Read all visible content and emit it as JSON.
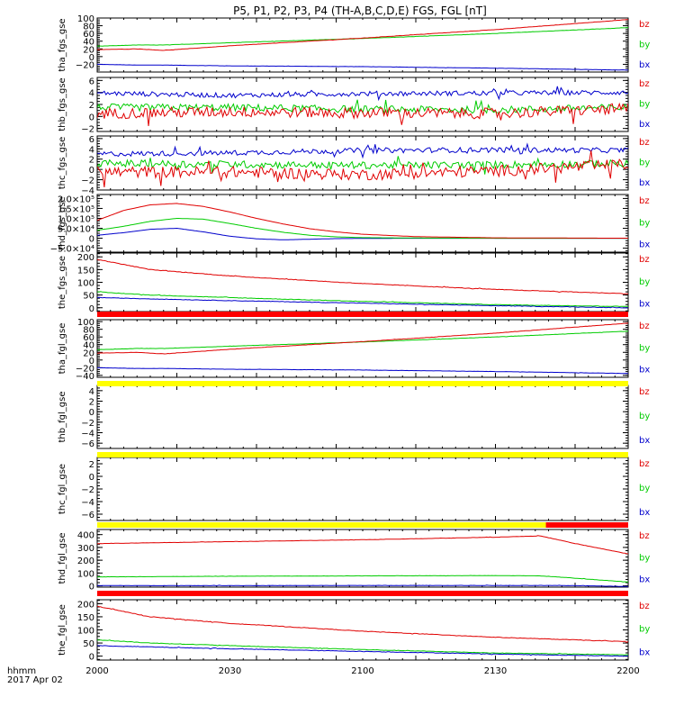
{
  "title": "P5, P1, P2, P3, P4 (TH-A,B,C,D,E) FGS, FGL [nT]",
  "time_label": "hhmm",
  "date_label": "2017 Apr 02",
  "x_ticks": [
    "2000",
    "2030",
    "2100",
    "2130",
    "2200"
  ],
  "colors": {
    "bx": "#0000cc",
    "by": "#00cc00",
    "bz": "#e00000",
    "bar_red": "#ff0000",
    "bar_yellow": "#ffff00",
    "axis": "#000000"
  },
  "chart_data": [
    {
      "type": "line",
      "ylabel": "tha_fgs_gse",
      "ylim": [
        -40,
        100
      ],
      "yticks": [
        "100",
        "80",
        "60",
        "40",
        "20",
        "0",
        "−20"
      ],
      "ytick_values": [
        100,
        80,
        60,
        40,
        20,
        0,
        -20
      ],
      "x": [
        0,
        15,
        25,
        50,
        100,
        150,
        200
      ],
      "series": [
        {
          "name": "bz",
          "values": [
            18,
            20,
            16,
            28,
            48,
            70,
            96
          ]
        },
        {
          "name": "by",
          "values": [
            27,
            30,
            30,
            36,
            47,
            60,
            75
          ]
        },
        {
          "name": "bx",
          "values": [
            -20,
            -22,
            -22,
            -24,
            -26,
            -30,
            -35
          ]
        }
      ],
      "noise": [
        0.3,
        0.3,
        0.3
      ]
    },
    {
      "type": "line",
      "ylabel": "thb_fgs_gse",
      "ylim": [
        -2.5,
        6.5
      ],
      "yticks": [
        "6",
        "4",
        "2",
        "0",
        "−2"
      ],
      "ytick_values": [
        6,
        4,
        2,
        0,
        -2
      ],
      "x": [
        0,
        50,
        100,
        150,
        200
      ],
      "series": [
        {
          "name": "bz",
          "values": [
            0.5,
            0.8,
            0.6,
            0.5,
            1.3
          ]
        },
        {
          "name": "by",
          "values": [
            1.5,
            1.5,
            1.2,
            1.1,
            1.5
          ]
        },
        {
          "name": "bx",
          "values": [
            3.9,
            3.5,
            3.8,
            3.9,
            4.0
          ]
        }
      ],
      "noise": [
        0.9,
        0.6,
        0.4
      ]
    },
    {
      "type": "line",
      "ylabel": "thc_fgs_gse",
      "ylim": [
        -4,
        6.5
      ],
      "yticks": [
        "6",
        "4",
        "2",
        "0",
        "−2",
        "−4"
      ],
      "ytick_values": [
        6,
        4,
        2,
        0,
        -2,
        -4
      ],
      "x": [
        0,
        50,
        100,
        150,
        200
      ],
      "series": [
        {
          "name": "bz",
          "values": [
            -0.5,
            -0.5,
            -1.0,
            -0.3,
            1.0
          ]
        },
        {
          "name": "by",
          "values": [
            1.2,
            1.0,
            0.8,
            0.9,
            1.2
          ]
        },
        {
          "name": "bx",
          "values": [
            3.0,
            3.2,
            3.7,
            3.8,
            3.7
          ]
        }
      ],
      "noise": [
        1.1,
        0.7,
        0.5
      ]
    },
    {
      "type": "line",
      "ylabel": "thd_fgs_gse",
      "ylim": [
        -70000,
        220000
      ],
      "yticks": [
        "2.0×10⁵",
        "1.5×10⁵",
        "1.0×10⁵",
        "5.0×10⁴",
        "0",
        "−5.0×10⁴"
      ],
      "ytick_values": [
        200000,
        150000,
        100000,
        50000,
        0,
        -50000
      ],
      "x": [
        0,
        10,
        20,
        30,
        40,
        50,
        60,
        70,
        80,
        90,
        100,
        120,
        150,
        200
      ],
      "series": [
        {
          "name": "bz",
          "values": [
            90000,
            140000,
            168000,
            175000,
            160000,
            132000,
            100000,
            72000,
            48000,
            32000,
            20000,
            8000,
            2000,
            0
          ]
        },
        {
          "name": "by",
          "values": [
            40000,
            60000,
            85000,
            100000,
            96000,
            74000,
            50000,
            30000,
            15000,
            7000,
            3000,
            1000,
            0,
            0
          ]
        },
        {
          "name": "bx",
          "values": [
            15000,
            28000,
            45000,
            50000,
            32000,
            10000,
            -3000,
            -8000,
            -5000,
            -2000,
            -1000,
            0,
            0,
            0
          ]
        }
      ],
      "noise": [
        0,
        0,
        0
      ]
    },
    {
      "type": "line",
      "ylabel": "the_fgs_gse",
      "ylim": [
        -15,
        215
      ],
      "yticks": [
        "200",
        "150",
        "100",
        "50",
        "0"
      ],
      "ytick_values": [
        200,
        150,
        100,
        50,
        0
      ],
      "x": [
        0,
        20,
        50,
        100,
        150,
        200
      ],
      "series": [
        {
          "name": "bz",
          "values": [
            190,
            150,
            125,
            95,
            72,
            55
          ]
        },
        {
          "name": "by",
          "values": [
            62,
            50,
            40,
            25,
            12,
            5
          ]
        },
        {
          "name": "bx",
          "values": [
            40,
            35,
            28,
            18,
            8,
            0
          ]
        }
      ],
      "noise": [
        1,
        1,
        1
      ]
    },
    {
      "type": "line",
      "ylabel": "tha_fgl_gse",
      "ylim": [
        -45,
        105
      ],
      "yticks": [
        "100",
        "80",
        "60",
        "40",
        "20",
        "0",
        "−20",
        "−40"
      ],
      "ytick_values": [
        100,
        80,
        60,
        40,
        20,
        0,
        -20,
        -40
      ],
      "x": [
        0,
        15,
        25,
        50,
        100,
        150,
        200
      ],
      "series": [
        {
          "name": "bz",
          "values": [
            18,
            20,
            16,
            28,
            48,
            70,
            96
          ]
        },
        {
          "name": "by",
          "values": [
            27,
            30,
            30,
            36,
            47,
            60,
            75
          ]
        },
        {
          "name": "bx",
          "values": [
            -20,
            -22,
            -22,
            -24,
            -26,
            -30,
            -35
          ]
        }
      ],
      "noise": [
        0.3,
        0.3,
        0.3
      ]
    },
    {
      "type": "line",
      "ylabel": "thb_fgl_gse",
      "ylim": [
        -7,
        5
      ],
      "yticks": [
        "4",
        "2",
        "0",
        "−2",
        "−4",
        "−6"
      ],
      "ytick_values": [
        4,
        2,
        0,
        -2,
        -4,
        -6
      ],
      "x": [],
      "series": [],
      "noise": []
    },
    {
      "type": "line",
      "ylabel": "thc_fgl_gse",
      "ylim": [
        -7,
        3
      ],
      "yticks": [
        "2",
        "0",
        "−2",
        "−4",
        "−6"
      ],
      "ytick_values": [
        2,
        0,
        -2,
        -4,
        -6
      ],
      "x": [],
      "series": [],
      "noise": []
    },
    {
      "type": "line",
      "ylabel": "thd_fgl_gse",
      "ylim": [
        -10,
        440
      ],
      "yticks": [
        "400",
        "300",
        "200",
        "100",
        "0"
      ],
      "ytick_values": [
        400,
        300,
        200,
        100,
        0
      ],
      "x": [
        0,
        50,
        100,
        150,
        167,
        180,
        200
      ],
      "series": [
        {
          "name": "bz",
          "values": [
            330,
            345,
            360,
            380,
            390,
            330,
            250
          ]
        },
        {
          "name": "by",
          "values": [
            70,
            75,
            78,
            80,
            78,
            60,
            30
          ]
        },
        {
          "name": "bx",
          "values": [
            2,
            2,
            3,
            3,
            3,
            2,
            -5
          ]
        }
      ],
      "noise": [
        1,
        1,
        1
      ]
    },
    {
      "type": "line",
      "ylabel": "the_fgl_gse",
      "ylim": [
        -15,
        215
      ],
      "yticks": [
        "200",
        "150",
        "100",
        "50",
        "0"
      ],
      "ytick_values": [
        200,
        150,
        100,
        50,
        0
      ],
      "x": [
        0,
        20,
        50,
        100,
        150,
        200
      ],
      "series": [
        {
          "name": "bz",
          "values": [
            190,
            150,
            125,
            95,
            72,
            55
          ]
        },
        {
          "name": "by",
          "values": [
            62,
            50,
            40,
            25,
            12,
            5
          ]
        },
        {
          "name": "bx",
          "values": [
            40,
            35,
            28,
            18,
            8,
            0
          ]
        }
      ],
      "noise": [
        1,
        1,
        1
      ]
    }
  ],
  "status_bars": [
    {
      "segments": [
        {
          "from": 0,
          "to": 200,
          "color": "bar_red"
        }
      ]
    },
    {
      "segments": [
        {
          "from": 0,
          "to": 200,
          "color": "bar_yellow"
        }
      ]
    },
    {
      "segments": [
        {
          "from": 0,
          "to": 200,
          "color": "bar_yellow"
        }
      ]
    },
    {
      "segments": [
        {
          "from": 0,
          "to": 169,
          "color": "bar_yellow"
        },
        {
          "from": 169,
          "to": 200,
          "color": "bar_red"
        }
      ]
    },
    {
      "segments": [
        {
          "from": 0,
          "to": 200,
          "color": "bar_red"
        }
      ]
    }
  ],
  "legend": [
    "bz",
    "by",
    "bx"
  ]
}
